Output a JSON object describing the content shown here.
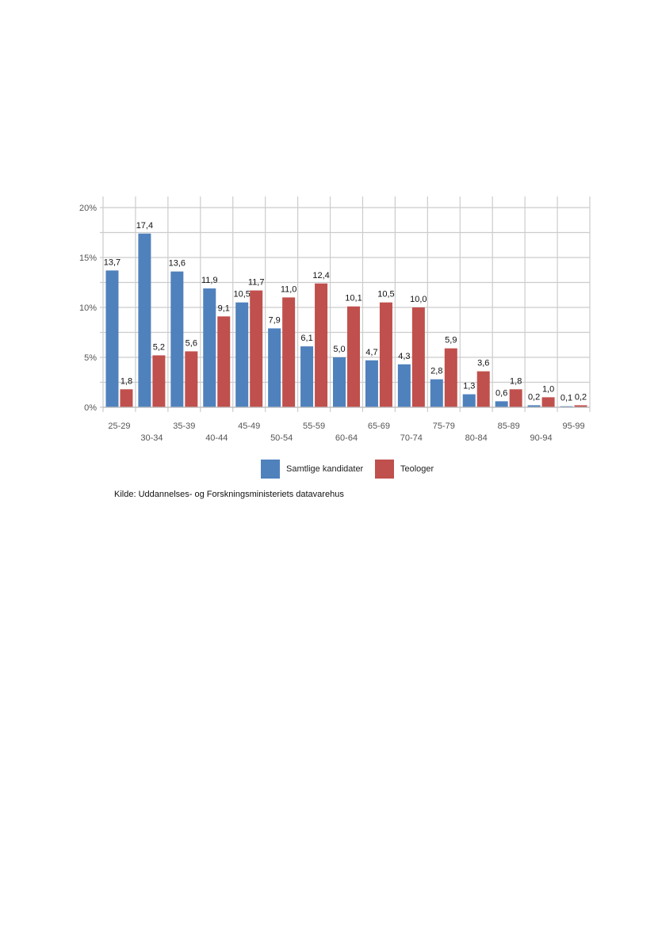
{
  "chart_data": {
    "type": "bar",
    "categories": [
      "25-29",
      "30-34",
      "35-39",
      "40-44",
      "45-49",
      "50-54",
      "55-59",
      "60-64",
      "65-69",
      "70-74",
      "75-79",
      "80-84",
      "85-89",
      "90-94",
      "95-99"
    ],
    "series": [
      {
        "name": "Samtlige kandidater",
        "color": "#4f81bd",
        "values": [
          13.7,
          17.4,
          13.6,
          11.9,
          10.5,
          7.9,
          6.1,
          5.0,
          4.7,
          4.3,
          2.8,
          1.3,
          0.6,
          0.2,
          0.1
        ],
        "labels": [
          "13,7",
          "17,4",
          "13,6",
          "11,9",
          "10,5",
          "7,9",
          "6,1",
          "5,0",
          "4,7",
          "4,3",
          "2,8",
          "1,3",
          "0,6",
          "0,2",
          "0,1"
        ]
      },
      {
        "name": "Teologer",
        "color": "#c0504d",
        "values": [
          1.8,
          5.2,
          5.6,
          9.1,
          11.7,
          11.0,
          12.4,
          10.1,
          10.5,
          10.0,
          5.9,
          3.6,
          1.8,
          1.0,
          0.2
        ],
        "labels": [
          "1,8",
          "5,2",
          "5,6",
          "9,1",
          "11,7",
          "11,0",
          "12,4",
          "10,1",
          "10,5",
          "10,0",
          "5,9",
          "3,6",
          "1,8",
          "1,0",
          "0,2"
        ]
      }
    ],
    "ylim": [
      0,
      20
    ],
    "yticks": [
      0,
      5,
      10,
      15,
      20
    ],
    "ytick_labels": [
      "0%",
      "5%",
      "10%",
      "15%",
      "20%"
    ],
    "grid": true,
    "legend": "bottom-center"
  },
  "legend": {
    "item1": "Samtlige kandidater",
    "item2": "Teologer"
  },
  "source": "Kilde: Uddannelses- og Forskningsministeriets datavarehus"
}
